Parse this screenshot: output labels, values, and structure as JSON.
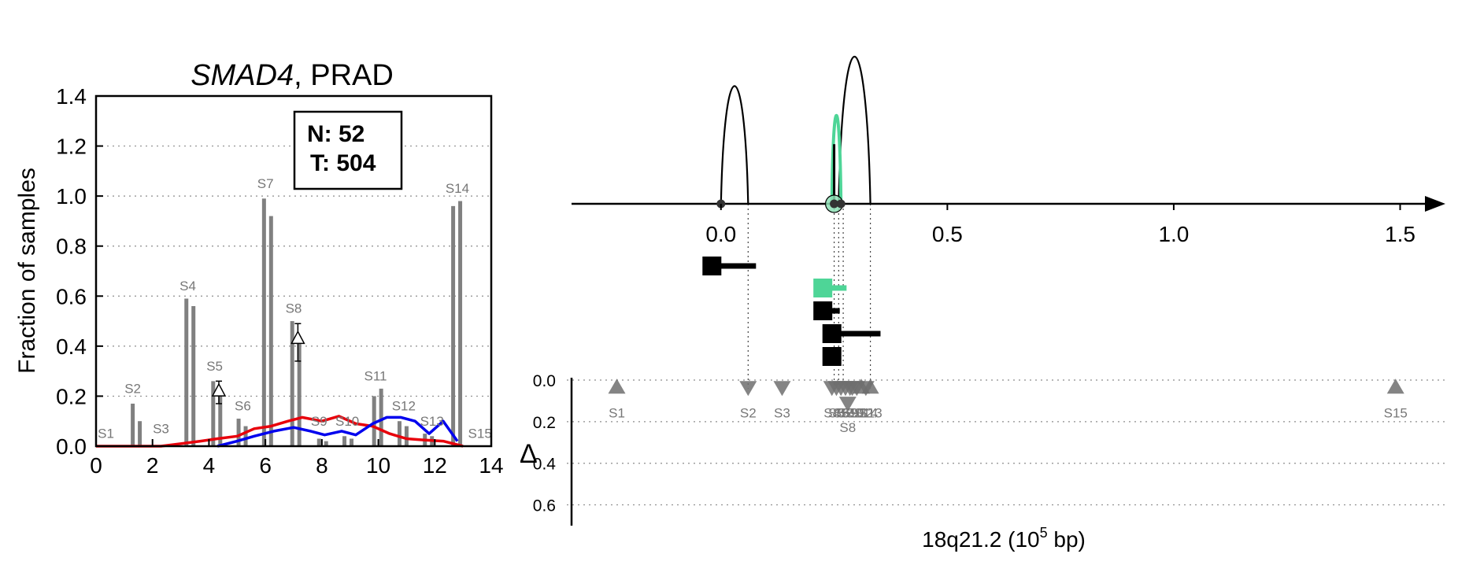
{
  "chart_data": [
    {
      "type": "bar",
      "title_gene": "SMAD4",
      "title_rest": ", PRAD",
      "xlabel": "",
      "ylabel": "Fraction of samples",
      "xlim": [
        0,
        14
      ],
      "ylim": [
        0,
        1.4
      ],
      "xticks": [
        0,
        2,
        4,
        6,
        8,
        10,
        12,
        14
      ],
      "yticks": [
        0.0,
        0.2,
        0.4,
        0.6,
        0.8,
        1.0,
        1.2,
        1.4
      ],
      "grid": "horizontal dotted",
      "legend_text": [
        "N: 52",
        "T: 504"
      ],
      "legend_position": "top-right",
      "bar_color": "#808080",
      "bars": [
        {
          "label": "S1",
          "label_x": 0.35,
          "label_y": 0.02,
          "pair": [
            [
              0.5,
              0.0
            ],
            [
              0.6,
              0.0
            ]
          ]
        },
        {
          "label": "S2",
          "label_x": 1.3,
          "label_y": 0.2,
          "pair": [
            [
              1.3,
              0.17
            ],
            [
              1.55,
              0.1
            ]
          ]
        },
        {
          "label": "S3",
          "label_x": 2.3,
          "label_y": 0.04,
          "pair": [
            [
              2.4,
              0.0
            ],
            [
              2.6,
              0.0
            ]
          ]
        },
        {
          "label": "S4",
          "label_x": 3.25,
          "label_y": 0.61,
          "pair": [
            [
              3.2,
              0.59
            ],
            [
              3.45,
              0.56
            ]
          ]
        },
        {
          "label": "S5",
          "label_x": 4.2,
          "label_y": 0.29,
          "pair": [
            [
              4.15,
              0.26
            ],
            [
              4.4,
              0.23
            ]
          ]
        },
        {
          "label": "S6",
          "label_x": 5.2,
          "label_y": 0.13,
          "pair": [
            [
              5.05,
              0.11
            ],
            [
              5.3,
              0.08
            ]
          ]
        },
        {
          "label": "S7",
          "label_x": 6.0,
          "label_y": 1.02,
          "pair": [
            [
              5.95,
              0.99
            ],
            [
              6.2,
              0.92
            ]
          ]
        },
        {
          "label": "S8",
          "label_x": 7.0,
          "label_y": 0.52,
          "pair": [
            [
              6.95,
              0.5
            ],
            [
              7.2,
              0.41
            ]
          ]
        },
        {
          "label": "S9",
          "label_x": 7.9,
          "label_y": 0.07,
          "pair": [
            [
              7.9,
              0.03
            ],
            [
              8.15,
              0.02
            ]
          ]
        },
        {
          "label": "S10",
          "label_x": 8.9,
          "label_y": 0.07,
          "pair": [
            [
              8.8,
              0.04
            ],
            [
              9.05,
              0.03
            ]
          ]
        },
        {
          "label": "S11",
          "label_x": 9.9,
          "label_y": 0.25,
          "pair": [
            [
              9.85,
              0.2
            ],
            [
              10.1,
              0.23
            ]
          ]
        },
        {
          "label": "S12",
          "label_x": 10.9,
          "label_y": 0.13,
          "pair": [
            [
              10.75,
              0.1
            ],
            [
              11.0,
              0.08
            ]
          ]
        },
        {
          "label": "S13",
          "label_x": 11.9,
          "label_y": 0.07,
          "pair": [
            [
              11.65,
              0.05
            ],
            [
              11.9,
              0.04
            ]
          ]
        },
        {
          "label": "S14",
          "label_x": 12.8,
          "label_y": 1.0,
          "pair": [
            [
              12.65,
              0.96
            ],
            [
              12.9,
              0.98
            ]
          ]
        },
        {
          "label": "S15",
          "label_x": 13.6,
          "label_y": 0.02,
          "pair": [
            [
              13.6,
              0.0
            ],
            [
              13.8,
              0.0
            ]
          ]
        }
      ],
      "delta_markers": [
        {
          "x": 4.35,
          "y": 0.22,
          "err": [
            0.17,
            0.26
          ]
        },
        {
          "x": 7.15,
          "y": 0.43,
          "err": [
            0.34,
            0.49
          ]
        }
      ],
      "series": [
        {
          "color": "#e8000b",
          "values": [
            [
              0.0,
              0.0
            ],
            [
              0.7,
              0.0
            ],
            [
              1.5,
              0.0
            ],
            [
              2.3,
              0.0
            ],
            [
              3.0,
              0.01
            ],
            [
              3.7,
              0.02
            ],
            [
              4.3,
              0.03
            ],
            [
              5.0,
              0.04
            ],
            [
              5.6,
              0.07
            ],
            [
              6.2,
              0.08
            ],
            [
              6.8,
              0.1
            ],
            [
              7.3,
              0.115
            ],
            [
              8.0,
              0.1
            ],
            [
              8.6,
              0.12
            ],
            [
              9.2,
              0.09
            ],
            [
              9.8,
              0.08
            ],
            [
              10.4,
              0.05
            ],
            [
              11.0,
              0.03
            ],
            [
              11.6,
              0.025
            ],
            [
              12.3,
              0.02
            ],
            [
              13.0,
              0.0
            ]
          ]
        },
        {
          "color": "#0000ee",
          "values": [
            [
              4.3,
              0.0
            ],
            [
              5.0,
              0.02
            ],
            [
              5.6,
              0.04
            ],
            [
              6.3,
              0.06
            ],
            [
              7.0,
              0.075
            ],
            [
              7.6,
              0.06
            ],
            [
              8.1,
              0.045
            ],
            [
              8.7,
              0.06
            ],
            [
              9.2,
              0.045
            ],
            [
              9.8,
              0.09
            ],
            [
              10.3,
              0.115
            ],
            [
              10.8,
              0.115
            ],
            [
              11.3,
              0.1
            ],
            [
              11.8,
              0.05
            ],
            [
              12.3,
              0.1
            ],
            [
              12.8,
              0.02
            ]
          ]
        }
      ]
    },
    {
      "type": "scatter",
      "xlabel_main": "18q21.2 (10",
      "xlabel_sup": "5",
      "xlabel_end": " bp)",
      "xlim": [
        -0.33,
        1.6
      ],
      "xticks": [
        0.0,
        0.5,
        1.0,
        1.5
      ],
      "xtick_labels": [
        "0.0",
        "0.5",
        "1.0",
        "1.5"
      ],
      "arcs": [
        {
          "x1": 0.0,
          "x2": 0.06,
          "height": 1.0,
          "color": "#000000"
        },
        {
          "x1": 0.26,
          "x2": 0.33,
          "height": 1.25,
          "color": "#000000"
        },
        {
          "x1": 0.245,
          "x2": 0.265,
          "height": 0.75,
          "color": "#4ed597"
        }
      ],
      "spike": {
        "x": 0.25,
        "height": 0.38
      },
      "nodes": [
        {
          "x": 0.0,
          "ring": false
        },
        {
          "x": 0.25,
          "ring": true
        },
        {
          "x": 0.265,
          "ring": false
        }
      ],
      "isoforms": [
        {
          "x": -0.02,
          "len": 0.08,
          "row": 0,
          "color": "#000000"
        },
        {
          "x": 0.225,
          "len": 0.035,
          "row": 1,
          "color": "#4ed597"
        },
        {
          "x": 0.225,
          "len": 0.02,
          "row": 2,
          "color": "#000000"
        },
        {
          "x": 0.245,
          "len": 0.09,
          "row": 3,
          "color": "#000000"
        },
        {
          "x": 0.245,
          "len": 0.0,
          "row": 4,
          "color": "#000000"
        }
      ],
      "guides": [
        0.06,
        0.25,
        0.26,
        0.27,
        0.33
      ],
      "delta_axis": {
        "label": "Δ",
        "yticks": [
          0.0,
          0.2,
          0.4,
          0.6
        ],
        "ytick_labels": [
          "0.0",
          "0.2",
          "0.4",
          "0.6"
        ],
        "ylim": [
          0.0,
          0.7
        ]
      },
      "markers": [
        {
          "label": "S1",
          "x": -0.23,
          "y": 0.035,
          "dir": "up",
          "label_dy": 0.18
        },
        {
          "label": "S2",
          "x": 0.06,
          "y": 0.035,
          "dir": "down",
          "label_dy": 0.18
        },
        {
          "label": "S3",
          "x": 0.135,
          "y": 0.035,
          "dir": "down",
          "label_dy": 0.18
        },
        {
          "label": "S4",
          "x": 0.245,
          "y": 0.035,
          "dir": "down",
          "label_dy": 0.18
        },
        {
          "label": "S5",
          "x": 0.255,
          "y": 0.035,
          "dir": "down",
          "label_dy": 0.18
        },
        {
          "label": "S6",
          "x": 0.265,
          "y": 0.035,
          "dir": "down",
          "label_dy": 0.18
        },
        {
          "label": "S7",
          "x": 0.275,
          "y": 0.035,
          "dir": "down",
          "label_dy": 0.18
        },
        {
          "label": "S8",
          "x": 0.28,
          "y": 0.11,
          "dir": "down",
          "label_dy": 0.25
        },
        {
          "label": "S9",
          "x": 0.285,
          "y": 0.035,
          "dir": "down",
          "label_dy": 0.18
        },
        {
          "label": "S10",
          "x": 0.29,
          "y": 0.035,
          "dir": "down",
          "label_dy": 0.18
        },
        {
          "label": "S11",
          "x": 0.3,
          "y": 0.035,
          "dir": "down",
          "label_dy": 0.18
        },
        {
          "label": "S12",
          "x": 0.31,
          "y": 0.035,
          "dir": "up",
          "label_dy": 0.18
        },
        {
          "label": "S13",
          "x": 0.33,
          "y": 0.035,
          "dir": "up",
          "label_dy": 0.18
        },
        {
          "label": "S14",
          "x": 0.32,
          "y": 0.035,
          "dir": "down",
          "label_dy": 0.18
        },
        {
          "label": "S15",
          "x": 1.49,
          "y": 0.035,
          "dir": "up",
          "label_dy": 0.18
        }
      ]
    }
  ]
}
